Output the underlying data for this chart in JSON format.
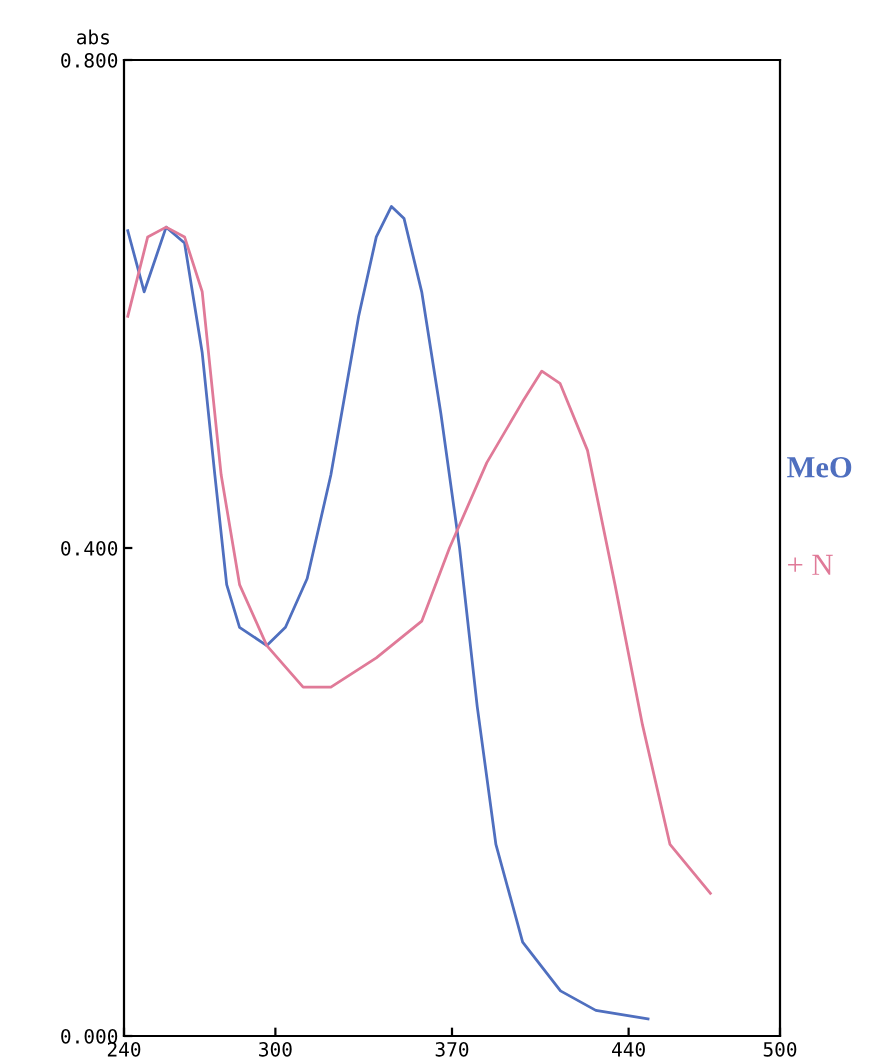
{
  "chart_data": {
    "type": "line",
    "ylabel": "abs",
    "series": [
      {
        "name": "MeO",
        "color": "#4f6fbf",
        "x": [
          241.5,
          248,
          256.7,
          264,
          271,
          276,
          280.7,
          285.8,
          296.6,
          304,
          312.6,
          322,
          333,
          340,
          346,
          351,
          358,
          365.6,
          373,
          380,
          387.4,
          398,
          413,
          427,
          447.7
        ],
        "values": [
          0.66,
          0.61,
          0.663,
          0.65,
          0.56,
          0.46,
          0.37,
          0.335,
          0.32,
          0.335,
          0.375,
          0.46,
          0.59,
          0.655,
          0.68,
          0.67,
          0.61,
          0.51,
          0.4,
          0.27,
          0.157,
          0.077,
          0.037,
          0.021,
          0.014
        ]
      },
      {
        "name": "+ N",
        "color": "#e07a98",
        "x": [
          241.5,
          249.4,
          256.7,
          264,
          271,
          278.5,
          285.8,
          296.6,
          311,
          322,
          340,
          358,
          369,
          383.8,
          398,
          405.6,
          412.8,
          423.7,
          434.6,
          445.5,
          456.4,
          472.4
        ],
        "values": [
          0.59,
          0.655,
          0.663,
          0.655,
          0.61,
          0.46,
          0.37,
          0.32,
          0.286,
          0.286,
          0.31,
          0.34,
          0.4,
          0.47,
          0.52,
          0.545,
          0.535,
          0.48,
          0.37,
          0.255,
          0.157,
          0.117
        ]
      }
    ],
    "xlim": [
      240,
      500
    ],
    "xticks": [
      240,
      300,
      370,
      440,
      500
    ],
    "ylim": [
      0,
      0.8
    ],
    "yticks": [
      {
        "value": 0,
        "label": "0.000"
      },
      {
        "value": 0.4,
        "label": "0.400"
      },
      {
        "value": 0.8,
        "label": "0.800"
      }
    ],
    "grid": false,
    "legend": "right",
    "marker": "none",
    "line_style": "solid"
  }
}
